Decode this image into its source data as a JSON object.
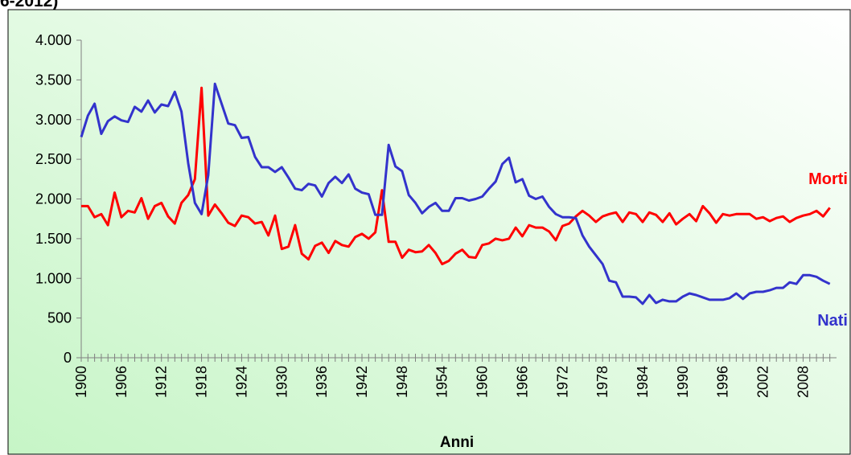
{
  "chart_data": {
    "type": "line",
    "title": "6-2012)",
    "x_label": "Anni",
    "x": [
      1900,
      1901,
      1902,
      1903,
      1904,
      1905,
      1906,
      1907,
      1908,
      1909,
      1910,
      1911,
      1912,
      1913,
      1914,
      1915,
      1916,
      1917,
      1918,
      1919,
      1920,
      1921,
      1922,
      1923,
      1924,
      1925,
      1926,
      1927,
      1928,
      1929,
      1930,
      1931,
      1932,
      1933,
      1934,
      1935,
      1936,
      1937,
      1938,
      1939,
      1940,
      1941,
      1942,
      1943,
      1944,
      1945,
      1946,
      1947,
      1948,
      1949,
      1950,
      1951,
      1952,
      1953,
      1954,
      1955,
      1956,
      1957,
      1958,
      1959,
      1960,
      1961,
      1962,
      1963,
      1964,
      1965,
      1966,
      1967,
      1968,
      1969,
      1970,
      1971,
      1972,
      1973,
      1974,
      1975,
      1976,
      1977,
      1978,
      1979,
      1980,
      1981,
      1982,
      1983,
      1984,
      1985,
      1986,
      1987,
      1988,
      1989,
      1990,
      1991,
      1992,
      1993,
      1994,
      1995,
      1996,
      1997,
      1998,
      1999,
      2000,
      2001,
      2002,
      2003,
      2004,
      2005,
      2006,
      2007,
      2008,
      2009,
      2010,
      2011,
      2012
    ],
    "series": [
      {
        "name": "Morti",
        "color": "#ff0000",
        "values": [
          1910,
          1910,
          1770,
          1810,
          1670,
          2080,
          1770,
          1850,
          1830,
          2010,
          1750,
          1910,
          1950,
          1780,
          1690,
          1950,
          2050,
          2250,
          3400,
          1790,
          1930,
          1820,
          1700,
          1660,
          1790,
          1770,
          1690,
          1710,
          1540,
          1790,
          1370,
          1400,
          1670,
          1310,
          1240,
          1410,
          1450,
          1320,
          1470,
          1420,
          1400,
          1520,
          1560,
          1500,
          1580,
          2110,
          1460,
          1460,
          1260,
          1360,
          1330,
          1340,
          1420,
          1320,
          1180,
          1220,
          1310,
          1360,
          1270,
          1260,
          1420,
          1440,
          1500,
          1480,
          1500,
          1640,
          1530,
          1670,
          1640,
          1640,
          1590,
          1480,
          1660,
          1690,
          1780,
          1850,
          1790,
          1710,
          1780,
          1810,
          1830,
          1710,
          1830,
          1810,
          1710,
          1830,
          1800,
          1710,
          1820,
          1680,
          1750,
          1810,
          1720,
          1910,
          1820,
          1700,
          1810,
          1790,
          1810,
          1810,
          1810,
          1750,
          1770,
          1720,
          1760,
          1780,
          1710,
          1760,
          1790,
          1810,
          1850,
          1780,
          1890
        ]
      },
      {
        "name": "Nati",
        "color": "#3333cc",
        "values": [
          2780,
          3050,
          3200,
          2820,
          2980,
          3040,
          2990,
          2970,
          3160,
          3100,
          3240,
          3090,
          3190,
          3170,
          3350,
          3100,
          2450,
          1950,
          1810,
          2300,
          3450,
          3200,
          2950,
          2930,
          2770,
          2780,
          2530,
          2400,
          2400,
          2340,
          2400,
          2270,
          2130,
          2110,
          2190,
          2170,
          2030,
          2200,
          2280,
          2200,
          2310,
          2130,
          2080,
          2060,
          1800,
          1800,
          2680,
          2410,
          2350,
          2050,
          1950,
          1820,
          1900,
          1950,
          1850,
          1850,
          2010,
          2010,
          1980,
          2000,
          2030,
          2130,
          2220,
          2440,
          2520,
          2210,
          2250,
          2040,
          2000,
          2030,
          1900,
          1810,
          1770,
          1770,
          1760,
          1540,
          1400,
          1290,
          1180,
          970,
          950,
          770,
          770,
          760,
          680,
          790,
          690,
          730,
          710,
          710,
          770,
          810,
          790,
          760,
          730,
          730,
          730,
          750,
          810,
          740,
          810,
          830,
          830,
          850,
          880,
          880,
          950,
          930,
          1040,
          1040,
          1020,
          970,
          930
        ]
      }
    ],
    "xlim": [
      1900,
      2013
    ],
    "xticks": [
      1900,
      1906,
      1912,
      1918,
      1924,
      1930,
      1936,
      1942,
      1948,
      1954,
      1960,
      1966,
      1972,
      1978,
      1984,
      1990,
      1996,
      2002,
      2008
    ],
    "ylim": [
      0,
      4000
    ],
    "yticks": [
      0,
      500,
      {
        "value": 1000,
        "label": "1.000"
      },
      {
        "value": 1500,
        "label": "1.500"
      },
      {
        "value": 2000,
        "label": "2.000"
      },
      {
        "value": 2500,
        "label": "2.500"
      },
      {
        "value": 3000,
        "label": "3.000"
      },
      {
        "value": 3500,
        "label": "3.500"
      },
      {
        "value": 4000,
        "label": "4.000"
      }
    ],
    "grid": false
  }
}
